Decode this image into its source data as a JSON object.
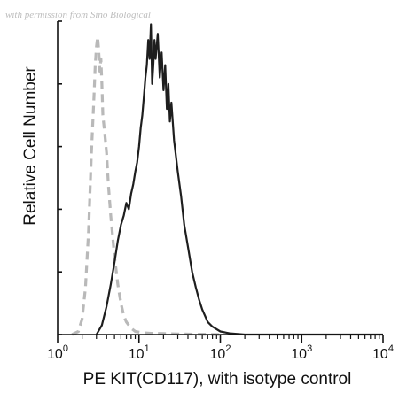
{
  "watermark": "with permission from Sino Biological",
  "chart_data": {
    "type": "line",
    "xscale": "log",
    "xlim": [
      1,
      10000
    ],
    "ylim": [
      0,
      100
    ],
    "ylabel": "Relative Cell Number",
    "xlabel": "PE KIT(CD117), with isotype control",
    "xticks": [
      {
        "base": "10",
        "exp": "0",
        "value": 1
      },
      {
        "base": "10",
        "exp": "1",
        "value": 10
      },
      {
        "base": "10",
        "exp": "2",
        "value": 100
      },
      {
        "base": "10",
        "exp": "3",
        "value": 1000
      },
      {
        "base": "10",
        "exp": "4",
        "value": 10000
      }
    ],
    "yticks": [
      0,
      20,
      40,
      60,
      80,
      100
    ],
    "grid": false,
    "legend": "none",
    "series": [
      {
        "style": "dashed",
        "color": "#b9b9b9",
        "x": [
          1.5,
          1.8,
          2.0,
          2.2,
          2.4,
          2.6,
          2.8,
          2.9,
          3.0,
          3.1,
          3.2,
          3.3,
          3.4,
          3.5,
          3.6,
          3.8,
          4.0,
          4.2,
          4.5,
          5.0,
          5.5,
          6.0,
          6.5,
          7.0,
          8.0,
          9.0,
          11.0,
          14.0,
          20.0,
          30.0,
          50.0,
          100.0
        ],
        "y": [
          0,
          1,
          5,
          15,
          33,
          58,
          76,
          86,
          92,
          95,
          91,
          84,
          88,
          80,
          70,
          64,
          58,
          48,
          38,
          25,
          16,
          10,
          6,
          4,
          2,
          1,
          0.6,
          0.4,
          0.3,
          0.2,
          0.1,
          0
        ]
      },
      {
        "style": "solid",
        "color": "#1e1e1e",
        "x": [
          3.0,
          3.5,
          4.0,
          4.5,
          5.0,
          5.5,
          6.0,
          6.5,
          7.0,
          7.5,
          8.0,
          8.5,
          9.0,
          9.5,
          10.0,
          10.5,
          11.0,
          11.5,
          12.0,
          12.5,
          13.0,
          13.5,
          14.0,
          14.5,
          15.0,
          15.5,
          16.0,
          17.0,
          18.0,
          19.0,
          20.0,
          21.0,
          22.0,
          23.0,
          24.0,
          25.0,
          27.0,
          30.0,
          33.0,
          36.0,
          40.0,
          45.0,
          50.0,
          55.0,
          60.0,
          70.0,
          80.0,
          100.0,
          130.0,
          200.0,
          1000.0,
          10000.0
        ],
        "y": [
          0,
          3,
          9,
          16,
          23,
          30,
          35,
          38,
          42,
          40,
          45,
          48,
          52,
          55,
          60,
          66,
          70,
          76,
          82,
          86,
          94,
          88,
          99,
          80,
          86,
          94,
          88,
          96,
          82,
          90,
          78,
          86,
          72,
          80,
          68,
          74,
          62,
          52,
          44,
          35,
          28,
          20,
          15,
          11,
          8,
          4,
          2.5,
          1,
          0.4,
          0,
          0,
          0
        ]
      }
    ]
  }
}
